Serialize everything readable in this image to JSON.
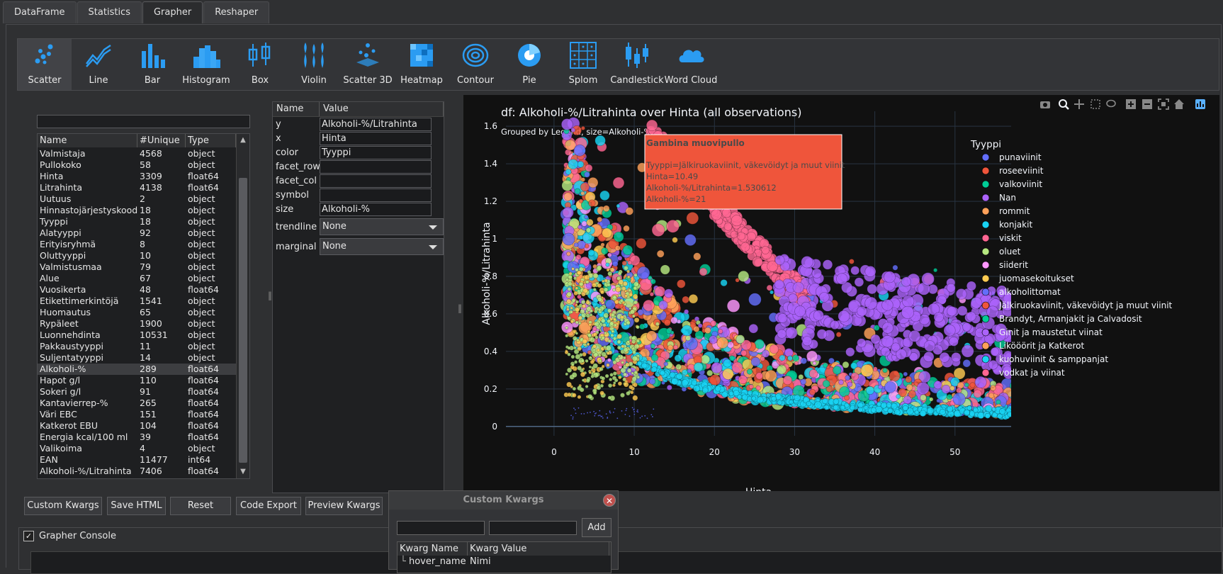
{
  "tabs": [
    "DataFrame",
    "Statistics",
    "Grapher",
    "Reshaper"
  ],
  "active_tab": "Grapher",
  "toolbar": [
    {
      "label": "Scatter",
      "icon": "scatter-icon"
    },
    {
      "label": "Line",
      "icon": "line-chart-icon"
    },
    {
      "label": "Bar",
      "icon": "bar-chart-icon"
    },
    {
      "label": "Histogram",
      "icon": "histogram-icon"
    },
    {
      "label": "Box",
      "icon": "box-plot-icon"
    },
    {
      "label": "Violin",
      "icon": "violin-plot-icon"
    },
    {
      "label": "Scatter 3D",
      "icon": "scatter-3d-icon"
    },
    {
      "label": "Heatmap",
      "icon": "heatmap-icon"
    },
    {
      "label": "Contour",
      "icon": "contour-icon"
    },
    {
      "label": "Pie",
      "icon": "pie-icon"
    },
    {
      "label": "Splom",
      "icon": "splom-icon"
    },
    {
      "label": "Candlestick",
      "icon": "candlestick-icon"
    },
    {
      "label": "Word Cloud",
      "icon": "word-cloud-icon"
    }
  ],
  "columns_table": {
    "headers": [
      "Name",
      "#Unique",
      "Type"
    ],
    "rows": [
      [
        "Valmistaja",
        "4568",
        "object"
      ],
      [
        "Pullokoko",
        "58",
        "object"
      ],
      [
        "Hinta",
        "3309",
        "float64"
      ],
      [
        "Litrahinta",
        "4138",
        "float64"
      ],
      [
        "Uutuus",
        "2",
        "object"
      ],
      [
        "Hinnastojärjestyskoodi",
        "18",
        "object"
      ],
      [
        "Tyyppi",
        "18",
        "object"
      ],
      [
        "Alatyyppi",
        "92",
        "object"
      ],
      [
        "Erityisryhmä",
        "8",
        "object"
      ],
      [
        "Oluttyyppi",
        "10",
        "object"
      ],
      [
        "Valmistusmaa",
        "79",
        "object"
      ],
      [
        "Alue",
        "67",
        "object"
      ],
      [
        "Vuosikerta",
        "48",
        "float64"
      ],
      [
        "Etikettimerkintöjä",
        "1541",
        "object"
      ],
      [
        "Huomautus",
        "65",
        "object"
      ],
      [
        "Rypäleet",
        "1900",
        "object"
      ],
      [
        "Luonnehdinta",
        "10531",
        "object"
      ],
      [
        "Pakkaustyyppi",
        "11",
        "object"
      ],
      [
        "Suljentatyyppi",
        "14",
        "object"
      ],
      [
        "Alkoholi-%",
        "289",
        "float64"
      ],
      [
        "Hapot g/l",
        "110",
        "float64"
      ],
      [
        "Sokeri g/l",
        "91",
        "float64"
      ],
      [
        "Kantavierrep-%",
        "265",
        "float64"
      ],
      [
        "Väri EBC",
        "151",
        "float64"
      ],
      [
        "Katkerot EBU",
        "104",
        "float64"
      ],
      [
        "Energia kcal/100 ml",
        "39",
        "float64"
      ],
      [
        "Valikoima",
        "4",
        "object"
      ],
      [
        "EAN",
        "11477",
        "int64"
      ],
      [
        "Alkoholi-%/Litrahinta",
        "7406",
        "float64"
      ]
    ],
    "selected_row": 19
  },
  "props": {
    "headers": [
      "Name",
      "Value"
    ],
    "rows": [
      {
        "name": "y",
        "value": "Alkoholi-%/Litrahinta"
      },
      {
        "name": "x",
        "value": "Hinta"
      },
      {
        "name": "color",
        "value": "Tyyppi"
      },
      {
        "name": "facet_row",
        "value": ""
      },
      {
        "name": "facet_col",
        "value": ""
      },
      {
        "name": "symbol",
        "value": ""
      },
      {
        "name": "size",
        "value": "Alkoholi-%"
      }
    ],
    "trendline": {
      "name": "trendline",
      "value": "None"
    },
    "marginal": {
      "name": "marginal",
      "value": "None"
    }
  },
  "buttons": [
    "Custom Kwargs",
    "Save HTML",
    "Reset",
    "Code Export",
    "Preview Kwargs"
  ],
  "console": {
    "label": "Grapher Console",
    "checked": true
  },
  "dialog": {
    "title": "Custom Kwargs",
    "add_label": "Add",
    "headers": [
      "Kwarg Name",
      "Kwarg Value"
    ],
    "rows": [
      {
        "name": "hover_name",
        "value": "Nimi"
      }
    ]
  },
  "chart_data": {
    "type": "scatter",
    "title": "df: Alkoholi-%/Litrahinta  over Hinta (all observations)",
    "subtitle": "Grouped by Legend, size=Alkoholi-%",
    "xlabel": "Hinta",
    "ylabel": "Alkoholi-%/Litrahinta",
    "xlim": [
      -6,
      57
    ],
    "ylim": [
      -0.05,
      1.68
    ],
    "xticks": [
      0,
      10,
      20,
      30,
      40,
      50
    ],
    "yticks": [
      0,
      0.2,
      0.4,
      0.6,
      0.8,
      1,
      1.2,
      1.4,
      1.6
    ],
    "grid": true,
    "legend_title": "Tyyppi",
    "legend_position": "right",
    "series": [
      {
        "name": "punaviinit",
        "color": "#636efa"
      },
      {
        "name": "roseeviinit",
        "color": "#ef553b"
      },
      {
        "name": "valkoviinit",
        "color": "#00cc96"
      },
      {
        "name": "Nan",
        "color": "#ab63fa"
      },
      {
        "name": "rommit",
        "color": "#ffa15a"
      },
      {
        "name": "konjakit",
        "color": "#19d3f3"
      },
      {
        "name": "viskit",
        "color": "#ff6692"
      },
      {
        "name": "oluet",
        "color": "#b6e880"
      },
      {
        "name": "siiderit",
        "color": "#ff97ff"
      },
      {
        "name": "juomasekoitukset",
        "color": "#fecb52"
      },
      {
        "name": "alkoholittomat",
        "color": "#636efa"
      },
      {
        "name": "Jälkiruokaviinit, väkevöidyt ja muut viinit",
        "color": "#ef553b"
      },
      {
        "name": "Brandyt, Armanjakit ja Calvadosit",
        "color": "#00cc96"
      },
      {
        "name": "Ginit ja maustetut viinat",
        "color": "#ab63fa"
      },
      {
        "name": "Likööörit ja Katkerot",
        "color": "#ffa15a"
      },
      {
        "name": "kuohuviinit & samppanjat",
        "color": "#19d3f3"
      },
      {
        "name": "vodkat ja viinat",
        "color": "#ff6692"
      }
    ],
    "hover": {
      "title": "Gambina muovipullo",
      "lines": [
        "Tyyppi=Jälkiruokaviinit, väkevöidyt ja muut viinit",
        "Hinta=10.49",
        "Alkoholi-%/Litrahinta=1.530612",
        "Alkoholi-%=21"
      ],
      "x": 10.49,
      "y": 1.530612
    }
  }
}
